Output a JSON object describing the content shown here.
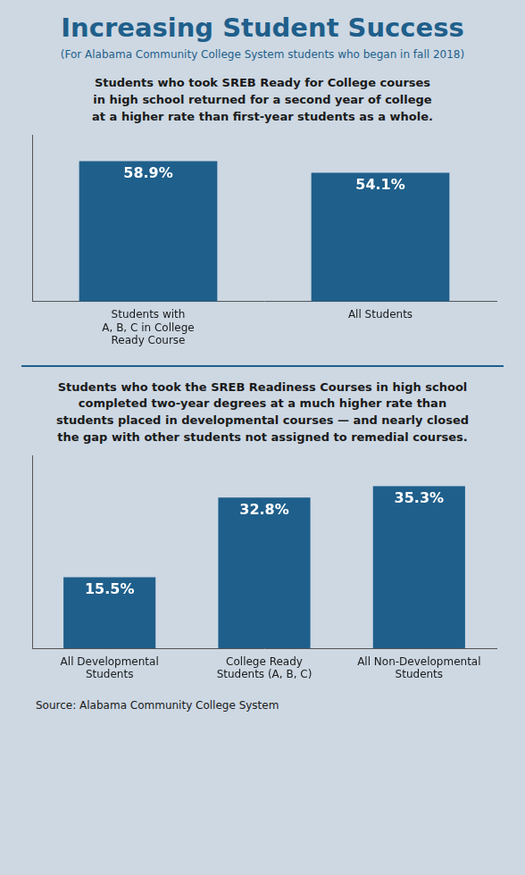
{
  "title": "Increasing Student Success",
  "subtitle": "(For Alabama Community College System students who began in fall 2018)",
  "source": "Source: Alabama Community College System",
  "chart_data": [
    {
      "type": "bar",
      "title": "Students who took SREB Ready for College courses\nin high school returned for a second year of college\nat a higher rate than first-year students as a whole.",
      "categories": [
        "Students with\nA, B, C in College\nReady Course",
        "All Students"
      ],
      "values": [
        58.9,
        54.1
      ],
      "value_labels": [
        "58.9%",
        "54.1%"
      ],
      "data_labels": true,
      "color": "#1f5f8b",
      "ylim": [
        0,
        70
      ],
      "tick_labels": "x",
      "grid": false
    },
    {
      "type": "bar",
      "title": "Students who took the SREB Readiness Courses in high school\ncompleted two-year degrees at a much higher rate than\nstudents placed in developmental courses — and nearly closed\nthe gap with other students not assigned to remedial courses.",
      "categories": [
        "All Developmental\nStudents",
        "College Ready\nStudents (A, B, C)",
        "All Non-Developmental\nStudents"
      ],
      "values": [
        15.5,
        32.8,
        35.3
      ],
      "value_labels": [
        "15.5%",
        "32.8%",
        "35.3%"
      ],
      "data_labels": true,
      "color": "#1f5f8b",
      "ylim": [
        0,
        42
      ],
      "tick_labels": "x",
      "grid": false
    }
  ]
}
